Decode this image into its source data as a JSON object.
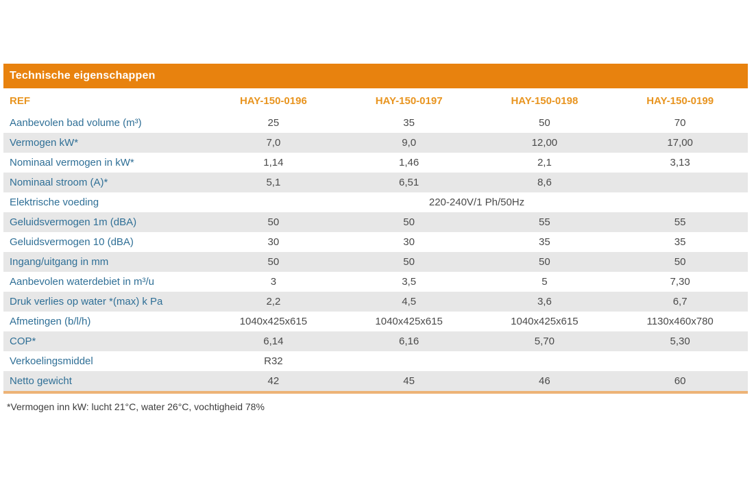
{
  "table": {
    "title": "Technische eigenschappen",
    "header": {
      "ref_label": "REF",
      "columns": [
        "HAY-150-0196",
        "HAY-150-0197",
        "HAY-150-0198",
        "HAY-150-0199"
      ]
    },
    "rows": [
      {
        "label": "Aanbevolen bad volume (m³)",
        "values": [
          "25",
          "35",
          "50",
          "70"
        ]
      },
      {
        "label": "Vermogen kW*",
        "values": [
          "7,0",
          "9,0",
          "12,00",
          "17,00"
        ]
      },
      {
        "label": "Nominaal vermogen in kW*",
        "values": [
          "1,14",
          "1,46",
          "2,1",
          "3,13"
        ]
      },
      {
        "label": "Nominaal stroom (A)*",
        "values": [
          "5,1",
          "6,51",
          "8,6",
          ""
        ]
      },
      {
        "label": "Elektrische voeding",
        "span_value": "220-240V/1 Ph/50Hz"
      },
      {
        "label": "Geluidsvermogen 1m (dBA)",
        "values": [
          "50",
          "50",
          "55",
          "55"
        ]
      },
      {
        "label": "Geluidsvermogen 10 (dBA)",
        "values": [
          "30",
          "30",
          "35",
          "35"
        ]
      },
      {
        "label": "Ingang/uitgang in mm",
        "values": [
          "50",
          "50",
          "50",
          "50"
        ]
      },
      {
        "label": "Aanbevolen waterdebiet in m³/u",
        "values": [
          "3",
          "3,5",
          "5",
          "7,30"
        ]
      },
      {
        "label": "Druk verlies op water *(max) k Pa",
        "values": [
          "2,2",
          "4,5",
          "3,6",
          "6,7"
        ]
      },
      {
        "label": "Afmetingen (b/l/h)",
        "values": [
          "1040x425x615",
          "1040x425x615",
          "1040x425x615",
          "1130x460x780"
        ]
      },
      {
        "label": "COP*",
        "values": [
          "6,14",
          "6,16",
          "5,70",
          "5,30"
        ]
      },
      {
        "label": "Verkoelingsmiddel",
        "values": [
          "R32",
          "",
          "",
          ""
        ]
      },
      {
        "label": "Netto gewicht",
        "values": [
          "42",
          "45",
          "46",
          "60"
        ]
      }
    ],
    "footnote": "*Vermogen inn kW: lucht 21°C, water 26°C, vochtigheid 78%",
    "colors": {
      "title_bar_bg": "#E8820E",
      "title_text": "#FFFFFF",
      "header_text": "#E8941F",
      "label_text": "#2F6F96",
      "value_text": "#4A4A4A",
      "shaded_row_bg": "#E7E7E7",
      "bottom_rule": "#EDB377"
    }
  }
}
